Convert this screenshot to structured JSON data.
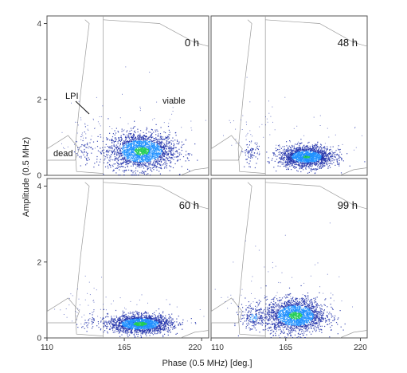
{
  "chart_data": {
    "type": "scatter",
    "xlabel": "Phase (0.5 MHz) [deg.]",
    "ylabel": "Amplitude (0.5 MHz)",
    "xlim": [
      110,
      225
    ],
    "ylim": [
      0,
      4.2
    ],
    "x_ticks": [
      "110",
      "165",
      "220"
    ],
    "x_ticks_right": [
      "110",
      "165",
      "220"
    ],
    "y_ticks": [
      "0",
      "2",
      "4"
    ],
    "grid": false,
    "annotations": {
      "lpi": "LPI",
      "viable": "viable",
      "dead": "dead"
    },
    "panels": [
      {
        "label": "0 h",
        "series": [
          {
            "role": "viable",
            "center": [
              177,
              0.65
            ],
            "spread": [
              12,
              0.24
            ],
            "count": 2200,
            "intensity": 1.0
          },
          {
            "role": "dead",
            "center": [
              136,
              0.65
            ],
            "spread": [
              3,
              0.18
            ],
            "count": 50,
            "intensity": 0.3
          }
        ]
      },
      {
        "label": "48 h",
        "series": [
          {
            "role": "viable",
            "center": [
              180,
              0.5
            ],
            "spread": [
              10,
              0.14
            ],
            "count": 1800,
            "intensity": 0.9
          },
          {
            "role": "dead",
            "center": [
              139,
              0.6
            ],
            "spread": [
              3,
              0.15
            ],
            "count": 70,
            "intensity": 0.4
          }
        ]
      },
      {
        "label": "60 h",
        "series": [
          {
            "role": "viable",
            "center": [
              176,
              0.38
            ],
            "spread": [
              11,
              0.12
            ],
            "count": 2000,
            "intensity": 1.0
          },
          {
            "role": "dead",
            "center": [
              138,
              0.45
            ],
            "spread": [
              3,
              0.12
            ],
            "count": 25,
            "intensity": 0.2
          }
        ]
      },
      {
        "label": "99 h",
        "series": [
          {
            "role": "viable",
            "center": [
              172,
              0.6
            ],
            "spread": [
              11,
              0.22
            ],
            "count": 2000,
            "intensity": 1.0
          },
          {
            "role": "dead",
            "center": [
              141,
              0.55
            ],
            "spread": [
              5,
              0.18
            ],
            "count": 180,
            "intensity": 0.6
          }
        ]
      }
    ],
    "gate_lines": {
      "viable_left_x": 150,
      "lpi_gate": [
        [
          137,
          4.1
        ],
        [
          140,
          4.0
        ],
        [
          134,
          2.2
        ],
        [
          130,
          0.7
        ],
        [
          131,
          0.1
        ],
        [
          150,
          0.05
        ]
      ],
      "dead_gate": [
        [
          110,
          0.7
        ],
        [
          125,
          1.05
        ],
        [
          133,
          0.7
        ],
        [
          130,
          0.4
        ],
        [
          110,
          0.4
        ]
      ],
      "top_curve": [
        [
          150,
          4.1
        ],
        [
          190,
          4.0
        ],
        [
          215,
          3.5
        ],
        [
          225,
          3.4
        ]
      ],
      "bottom_curve": [
        [
          205,
          0.0
        ],
        [
          215,
          0.15
        ],
        [
          225,
          0.2
        ]
      ]
    },
    "colors": {
      "low": "#2233aa",
      "mid": "#1e90ff",
      "high": "#22cc55",
      "gate": "#9a9a9a"
    }
  }
}
